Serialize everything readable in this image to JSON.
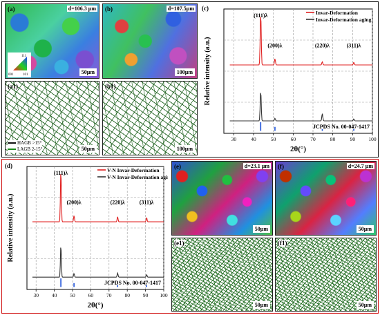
{
  "top": {
    "a": {
      "label": "(a)",
      "d": "d=106.3 μm",
      "scale": "50μm"
    },
    "b": {
      "label": "(b)",
      "d": "d=107.5μm",
      "scale": "100μm"
    },
    "a1": {
      "label": "(a1)",
      "scale": "50μm",
      "legend": [
        "HAGB  >15°",
        "LAGB  2-15°"
      ]
    },
    "b1": {
      "label": "(b1)",
      "scale": "100μm"
    },
    "ipf": {
      "top": "111",
      "left": "001",
      "right": "101"
    },
    "c": {
      "label": "(c)"
    }
  },
  "bottom": {
    "d": {
      "label": "(d)"
    },
    "e": {
      "label": "(e)",
      "d": "d=23.1 μm",
      "scale": "50μm"
    },
    "f": {
      "label": "(f)",
      "d": "d=24.7 μm",
      "scale": "50μm"
    },
    "e1": {
      "label": "(e1)",
      "scale": "50μm"
    },
    "f1": {
      "label": "(f1)",
      "scale": "50μm"
    }
  },
  "colors": {
    "red": "#e02020",
    "black": "#333333",
    "blue": "#1a4fd8",
    "frame_red": "#d01010"
  },
  "chart_data": [
    {
      "type": "line",
      "id": "c",
      "xlabel": "2θ(°)",
      "ylabel": "Relative intensity (a.u.)",
      "xlim": [
        25,
        100
      ],
      "xticks": [
        30,
        40,
        50,
        60,
        70,
        80,
        90,
        100
      ],
      "grid": true,
      "legend_position": "top-right",
      "series": [
        {
          "name": "Invar-Deformation",
          "color": "#e02020",
          "offset": 0.55,
          "peaks": [
            [
              43.6,
              1.0
            ],
            [
              50.8,
              0.12
            ],
            [
              74.7,
              0.06
            ],
            [
              90.6,
              0.05
            ]
          ]
        },
        {
          "name": "Invar-Deformation aging",
          "color": "#333333",
          "offset": 0.1,
          "peaks": [
            [
              43.6,
              0.58
            ],
            [
              50.8,
              0.05
            ],
            [
              74.7,
              0.14
            ],
            [
              90.6,
              0.04
            ]
          ]
        }
      ],
      "reference": {
        "label": "JCPDS No. 00-047-1417",
        "color": "#1a4fd8",
        "lines": [
          [
            43.6,
            1.0
          ],
          [
            50.8,
            0.45
          ],
          [
            74.7,
            0.2
          ],
          [
            90.6,
            0.2
          ]
        ]
      },
      "annotations": [
        {
          "x": 43.6,
          "text": "(111)λ"
        },
        {
          "x": 50.8,
          "text": "(200)λ"
        },
        {
          "x": 74.7,
          "text": "(220)λ"
        },
        {
          "x": 90.6,
          "text": "(311)λ"
        }
      ]
    },
    {
      "type": "line",
      "id": "d",
      "xlabel": "2θ(°)",
      "ylabel": "Relative intensity (a.u.)",
      "xlim": [
        25,
        100
      ],
      "xticks": [
        30,
        40,
        50,
        60,
        70,
        80,
        90,
        100
      ],
      "grid": true,
      "legend_position": "top-right",
      "series": [
        {
          "name": "V-N Invar-Deformation",
          "color": "#e02020",
          "offset": 0.55,
          "peaks": [
            [
              43.6,
              1.0
            ],
            [
              50.8,
              0.12
            ],
            [
              74.7,
              0.1
            ],
            [
              90.6,
              0.08
            ]
          ]
        },
        {
          "name": "V-N Invar-Deformation aging",
          "color": "#333333",
          "offset": 0.1,
          "peaks": [
            [
              43.6,
              0.62
            ],
            [
              50.8,
              0.07
            ],
            [
              74.7,
              0.08
            ],
            [
              90.6,
              0.05
            ]
          ]
        }
      ],
      "reference": {
        "label": "JCPDS No. 00-047-1417",
        "color": "#1a4fd8",
        "lines": [
          [
            43.6,
            1.0
          ],
          [
            50.8,
            0.45
          ],
          [
            74.7,
            0.2
          ],
          [
            90.6,
            0.2
          ]
        ]
      },
      "annotations": [
        {
          "x": 43.6,
          "text": "(111)λ"
        },
        {
          "x": 50.8,
          "text": "(200)λ"
        },
        {
          "x": 74.7,
          "text": "(220)λ"
        },
        {
          "x": 90.6,
          "text": "(311)λ"
        }
      ]
    }
  ]
}
